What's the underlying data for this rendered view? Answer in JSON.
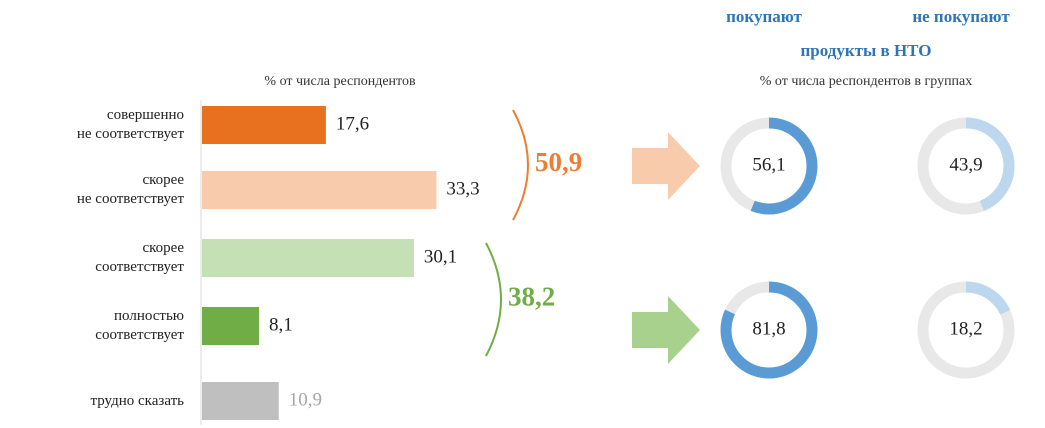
{
  "chart_data": [
    {
      "type": "hbar",
      "subtitle": "% от числа респондентов",
      "categories": [
        "совершенно\nне соответствует",
        "скорее\nне соответствует",
        "скорее\nсоответствует",
        "полностью\nсоответствует",
        "трудно сказать"
      ],
      "values": [
        17.6,
        33.3,
        30.1,
        8.1,
        10.9
      ],
      "value_labels": [
        "17,6",
        "33,3",
        "30,1",
        "8,1",
        "10,9"
      ],
      "colors": [
        "#e8711f",
        "#f8cbad",
        "#c5e0b4",
        "#70ad47",
        "#bfbfbf"
      ],
      "xlim": [
        0,
        50
      ],
      "annotations": [
        {
          "text": "50,9",
          "color": "#ed7d31"
        },
        {
          "text": "38,2",
          "color": "#70ad47"
        }
      ]
    },
    {
      "type": "donut",
      "columns": [
        "покупают",
        "не покупают"
      ],
      "title": "продукты в НТО",
      "subtitle": "% от числа респондентов в группах",
      "colors": [
        "#5b9bd5",
        "#bdd7ee"
      ],
      "arrow_colors": [
        "#f8cbad",
        "#a9d18e"
      ],
      "rows": [
        {
          "values": [
            56.1,
            43.9
          ],
          "value_labels": [
            "56,1",
            "43,9"
          ]
        },
        {
          "values": [
            81.8,
            18.2
          ],
          "value_labels": [
            "81,8",
            "18,2"
          ]
        }
      ]
    }
  ]
}
